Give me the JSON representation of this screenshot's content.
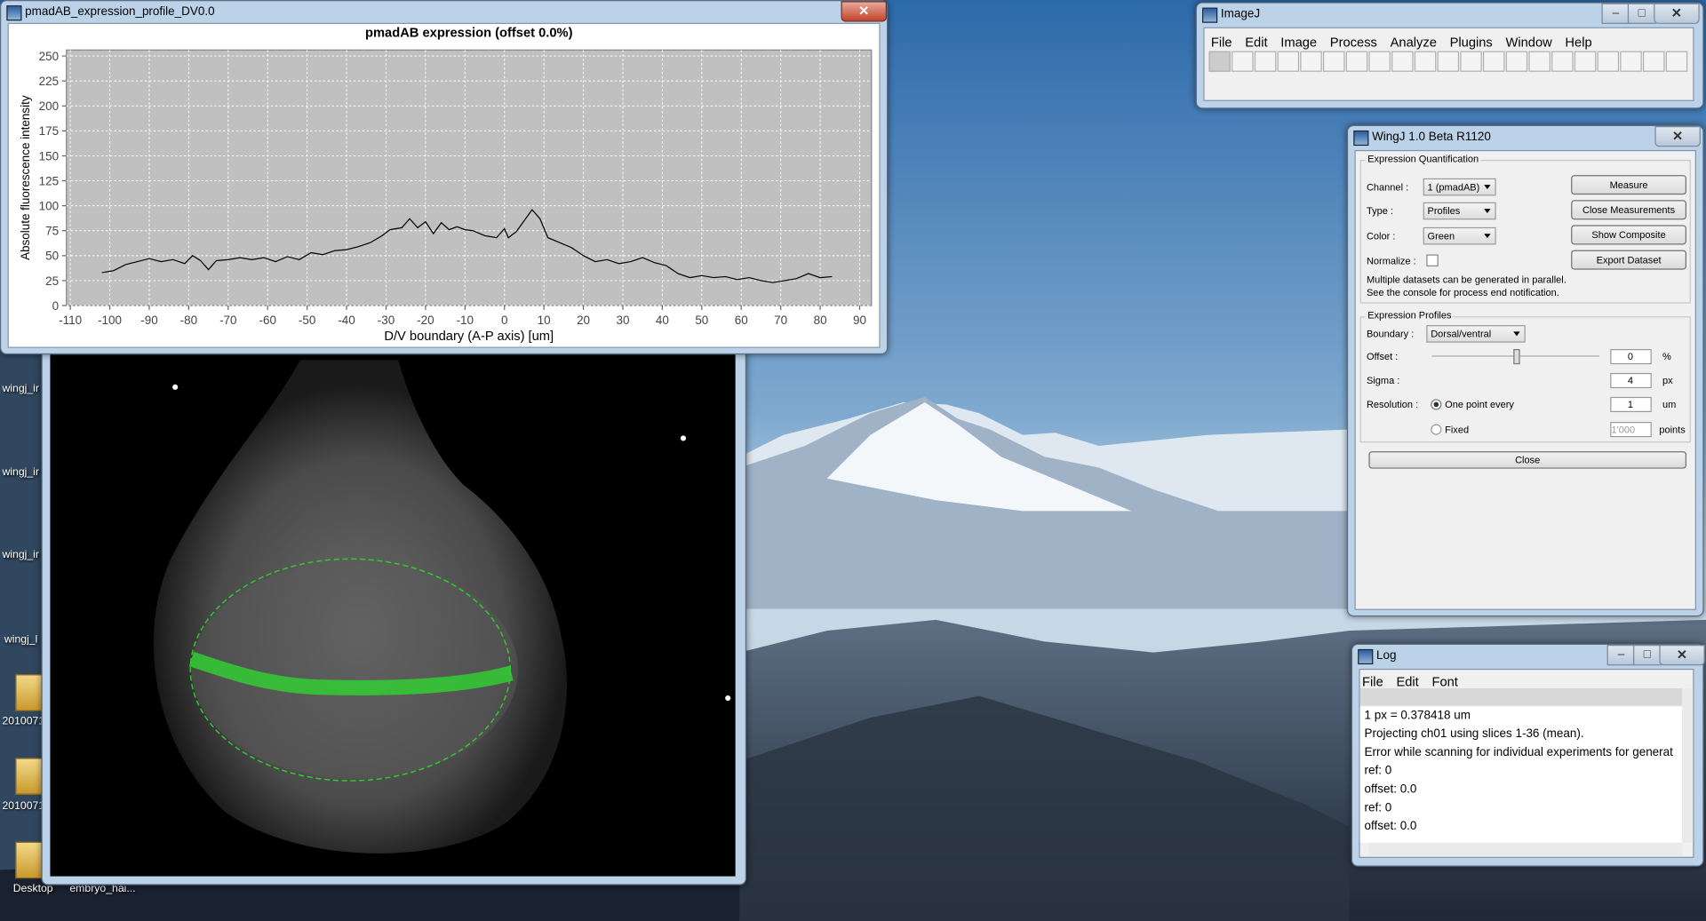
{
  "profile_window": {
    "title": "pmadAB_expression_profile_DV0.0"
  },
  "chart_data": {
    "type": "line",
    "title": "pmadAB expression (offset 0.0%)",
    "x_label": "D/V boundary (A-P axis) [um]",
    "y_label": "Absolute fluorescence intensity",
    "x": [
      -102,
      -99,
      -96,
      -93,
      -90,
      -87,
      -84,
      -81,
      -79,
      -77,
      -75,
      -73,
      -70,
      -67,
      -64,
      -61,
      -58,
      -55,
      -52,
      -49,
      -46,
      -43,
      -40,
      -37,
      -34,
      -31,
      -29,
      -26,
      -24,
      -22,
      -20,
      -18,
      -16,
      -14,
      -12,
      -10,
      -8,
      -5,
      -2,
      0,
      1,
      3,
      5,
      7,
      9,
      11,
      14,
      17,
      20,
      23,
      26,
      29,
      32,
      35,
      38,
      41,
      44,
      47,
      50,
      53,
      56,
      59,
      62,
      65,
      68,
      71,
      74,
      77,
      80,
      83
    ],
    "values": [
      33,
      35,
      41,
      44,
      47,
      44,
      46,
      42,
      50,
      45,
      36,
      45,
      46,
      48,
      46,
      48,
      44,
      49,
      46,
      53,
      51,
      55,
      56,
      59,
      63,
      70,
      76,
      78,
      87,
      78,
      84,
      72,
      83,
      76,
      79,
      76,
      75,
      70,
      68,
      77,
      68,
      74,
      85,
      96,
      87,
      68,
      63,
      58,
      50,
      44,
      46,
      42,
      44,
      48,
      43,
      40,
      32,
      28,
      30,
      28,
      29,
      26,
      28,
      25,
      23,
      25,
      27,
      32,
      28,
      29
    ],
    "color": "#000000",
    "xlim": [
      -111,
      93
    ],
    "ylim": [
      0,
      256
    ],
    "xticks": [
      -110,
      -100,
      -90,
      -80,
      -70,
      -60,
      -50,
      -40,
      -30,
      -20,
      -10,
      0,
      10,
      20,
      30,
      40,
      50,
      60,
      70,
      80,
      90
    ],
    "yticks": [
      0,
      25,
      50,
      75,
      100,
      125,
      150,
      175,
      200,
      225,
      250
    ],
    "grid": true
  },
  "imagej": {
    "title": "ImageJ",
    "menu": [
      "File",
      "Edit",
      "Image",
      "Process",
      "Analyze",
      "Plugins",
      "Window",
      "Help"
    ]
  },
  "wingj": {
    "title": "WingJ 1.0 Beta R1120",
    "quant": {
      "legend": "Expression Quantification",
      "labels": [
        "Channel :",
        "Type :",
        "Color :",
        "Normalize :"
      ],
      "selects": [
        "1 (pmadAB)",
        "Profiles",
        "Green"
      ],
      "buttons": [
        "Measure",
        "Close Measurements",
        "Show Composite",
        "Export Dataset"
      ],
      "note": [
        "Multiple datasets can be generated in parallel.",
        "See the console for process end notification."
      ]
    },
    "profiles": {
      "legend": "Expression Profiles",
      "boundary_label": "Boundary :",
      "boundary": "Dorsal/ventral",
      "offset_label": "Offset :",
      "offset": "0",
      "offset_unit": "%",
      "sigma_label": "Sigma :",
      "sigma": "4",
      "sigma_unit": "px",
      "resolution_label": "Resolution :",
      "option1": "One point every",
      "every": "1",
      "every_unit": "um",
      "option2": "Fixed",
      "fixed": "1'000",
      "fixed_unit": "points"
    },
    "close": "Close"
  },
  "log": {
    "title": "Log",
    "menu": [
      "File",
      "Edit",
      "Font"
    ],
    "lines": [
      "1 px = 0.378418 um",
      "Projecting ch01 using slices 1-36 (mean).",
      "Error while scanning for individual experiments for generat",
      "ref: 0",
      "offset: 0.0",
      "ref: 0",
      "offset: 0.0"
    ]
  },
  "desktop_icons": [
    "wingj_ir",
    "wingj_ir",
    "wingj_ir",
    "wingj_l",
    "2010071",
    "2010071",
    "Desktop",
    "embryo_hai..."
  ]
}
